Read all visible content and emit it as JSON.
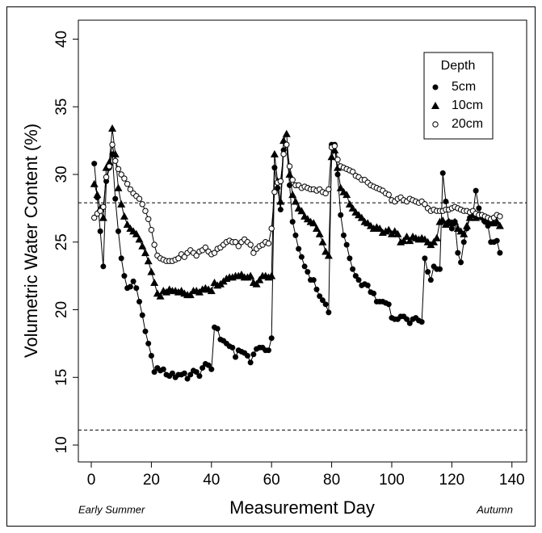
{
  "chart_data": {
    "type": "line",
    "xlabel": "Measurement Day",
    "ylabel": "Volumetric Water Content (%)",
    "annotations": [
      "Early Summer",
      "Autumn"
    ],
    "legend_title": "Depth",
    "legend": "top-right",
    "xlim": [
      -4.3,
      144.9
    ],
    "ylim": [
      8.75,
      41.4
    ],
    "xticks": [
      0,
      20,
      40,
      60,
      80,
      100,
      120,
      140
    ],
    "yticks": [
      10,
      15,
      20,
      25,
      30,
      35,
      40
    ],
    "hlines": [
      27.9,
      11.1
    ],
    "x": [
      1,
      2,
      3,
      4,
      5,
      6,
      7,
      8,
      9,
      10,
      11,
      12,
      13,
      14,
      15,
      16,
      17,
      18,
      19,
      20,
      21,
      22,
      23,
      24,
      25,
      26,
      27,
      28,
      29,
      30,
      31,
      32,
      33,
      34,
      35,
      36,
      37,
      38,
      39,
      40,
      41,
      42,
      43,
      44,
      45,
      46,
      47,
      48,
      49,
      50,
      51,
      52,
      53,
      54,
      55,
      56,
      57,
      58,
      59,
      60,
      61,
      62,
      63,
      64,
      65,
      66,
      67,
      68,
      69,
      70,
      71,
      72,
      73,
      74,
      75,
      76,
      77,
      78,
      79,
      80,
      81,
      82,
      83,
      84,
      85,
      86,
      87,
      88,
      89,
      90,
      91,
      92,
      93,
      94,
      95,
      96,
      97,
      98,
      99,
      100,
      101,
      102,
      103,
      104,
      105,
      106,
      107,
      108,
      109,
      110,
      111,
      112,
      113,
      114,
      115,
      116,
      117,
      118,
      119,
      120,
      121,
      122,
      123,
      124,
      125,
      126,
      127,
      128,
      129,
      130,
      131,
      132,
      133,
      134,
      135,
      136
    ],
    "series": [
      {
        "name": "5cm",
        "color": "#000000",
        "marker": "circle",
        "values": [
          30.8,
          28.3,
          25.8,
          23.2,
          29.5,
          30.5,
          31.5,
          28.2,
          25.8,
          23.8,
          22.5,
          21.6,
          21.7,
          22.1,
          21.6,
          20.6,
          19.6,
          18.4,
          17.5,
          16.6,
          15.4,
          15.7,
          15.5,
          15.6,
          15.2,
          15.1,
          15.3,
          15.0,
          15.2,
          15.2,
          15.3,
          14.9,
          15.2,
          15.5,
          15.4,
          15.1,
          15.7,
          16.0,
          15.9,
          15.6,
          18.7,
          18.6,
          17.8,
          17.7,
          17.5,
          17.3,
          17.2,
          16.5,
          17.0,
          16.9,
          16.8,
          16.6,
          16.1,
          16.7,
          17.1,
          17.2,
          17.2,
          17.0,
          17.0,
          17.9,
          30.5,
          29.0,
          27.4,
          31.8,
          32.2,
          29.2,
          26.5,
          25.5,
          24.5,
          23.9,
          23.2,
          22.8,
          22.2,
          22.2,
          21.5,
          21.0,
          20.7,
          20.4,
          19.8,
          32.2,
          32.2,
          30.0,
          27.0,
          25.5,
          24.8,
          23.8,
          23.0,
          22.5,
          22.2,
          21.8,
          21.9,
          21.8,
          21.3,
          21.2,
          20.6,
          20.6,
          20.6,
          20.5,
          20.4,
          19.4,
          19.3,
          19.3,
          19.5,
          19.5,
          19.3,
          19.0,
          19.3,
          19.4,
          19.2,
          19.1,
          23.8,
          22.8,
          22.2,
          23.2,
          23.0,
          23.0,
          30.1,
          28.0,
          26.5,
          26.0,
          26.5,
          24.2,
          23.5,
          25.0,
          26.0,
          26.8,
          27.0,
          28.8,
          27.5,
          26.8,
          26.5,
          26.2,
          25.0,
          25.0,
          25.1,
          24.2
        ]
      },
      {
        "name": "10cm",
        "color": "#000000",
        "marker": "triangle",
        "values": [
          29.3,
          28.5,
          27.5,
          26.8,
          30.5,
          30.9,
          33.4,
          31.5,
          29.0,
          27.8,
          26.9,
          26.3,
          26.0,
          25.8,
          25.6,
          25.2,
          24.7,
          24.2,
          23.6,
          22.8,
          22.0,
          21.2,
          21.0,
          21.4,
          21.3,
          21.5,
          21.4,
          21.4,
          21.3,
          21.4,
          21.2,
          21.1,
          21.1,
          21.4,
          21.4,
          21.3,
          21.5,
          21.6,
          21.5,
          21.4,
          22.0,
          21.8,
          21.9,
          22.1,
          22.3,
          22.4,
          22.4,
          22.5,
          22.5,
          22.6,
          22.4,
          22.4,
          22.5,
          22.0,
          21.9,
          22.2,
          22.5,
          22.5,
          22.4,
          22.5,
          31.5,
          29.5,
          28.0,
          32.5,
          33.0,
          30.0,
          28.5,
          28.0,
          27.5,
          27.3,
          26.9,
          26.7,
          26.5,
          26.4,
          26.0,
          25.6,
          25.0,
          24.3,
          24.0,
          31.3,
          31.8,
          30.5,
          29.0,
          28.7,
          28.5,
          27.8,
          27.5,
          27.2,
          27.0,
          26.8,
          26.5,
          26.4,
          26.2,
          26.0,
          26.1,
          26.0,
          25.7,
          25.8,
          25.9,
          25.6,
          25.8,
          25.6,
          25.0,
          25.1,
          25.4,
          25.1,
          25.4,
          25.3,
          25.2,
          25.3,
          25.2,
          25.0,
          24.8,
          25.0,
          25.3,
          26.5,
          26.6,
          26.3,
          26.5,
          26.4,
          26.5,
          26.0,
          25.8,
          25.6,
          26.2,
          26.8,
          27.0,
          26.8,
          27.0,
          26.9,
          26.7,
          26.6,
          26.5,
          26.4,
          26.5,
          26.2
        ]
      },
      {
        "name": "20cm",
        "color": "#000000",
        "marker": "open-circle",
        "values": [
          26.8,
          27.1,
          27.3,
          27.6,
          29.8,
          30.6,
          32.2,
          31.0,
          30.4,
          30.0,
          29.7,
          29.3,
          28.9,
          28.6,
          28.4,
          28.2,
          27.8,
          27.3,
          26.7,
          25.9,
          24.8,
          24.0,
          23.8,
          23.7,
          23.6,
          23.6,
          23.6,
          23.7,
          23.8,
          24.1,
          23.9,
          24.2,
          24.4,
          24.2,
          24.0,
          24.3,
          24.4,
          24.6,
          24.3,
          24.1,
          24.2,
          24.5,
          24.6,
          24.8,
          25.0,
          25.1,
          25.0,
          25.0,
          24.7,
          25.0,
          25.2,
          25.0,
          24.8,
          24.2,
          24.5,
          24.7,
          24.8,
          25.0,
          24.9,
          26.0,
          28.7,
          29.4,
          29.5,
          31.5,
          32.2,
          30.6,
          29.6,
          29.2,
          29.2,
          29.0,
          29.1,
          29.0,
          28.9,
          28.9,
          28.8,
          28.9,
          28.7,
          28.6,
          28.9,
          32.0,
          32.1,
          31.1,
          30.6,
          30.5,
          30.4,
          30.3,
          30.2,
          29.9,
          29.8,
          29.6,
          29.6,
          29.4,
          29.2,
          29.1,
          29.0,
          28.9,
          28.8,
          28.6,
          28.5,
          28.1,
          28.0,
          28.2,
          28.3,
          28.1,
          28.0,
          28.2,
          28.1,
          28.0,
          27.9,
          28.0,
          27.8,
          27.5,
          27.3,
          27.4,
          27.3,
          27.3,
          27.3,
          27.4,
          27.4,
          27.5,
          27.6,
          27.5,
          27.4,
          27.3,
          27.3,
          27.2,
          27.3,
          27.1,
          27.0,
          27.0,
          26.9,
          26.8,
          26.7,
          26.8,
          27.0,
          26.9
        ]
      }
    ]
  }
}
